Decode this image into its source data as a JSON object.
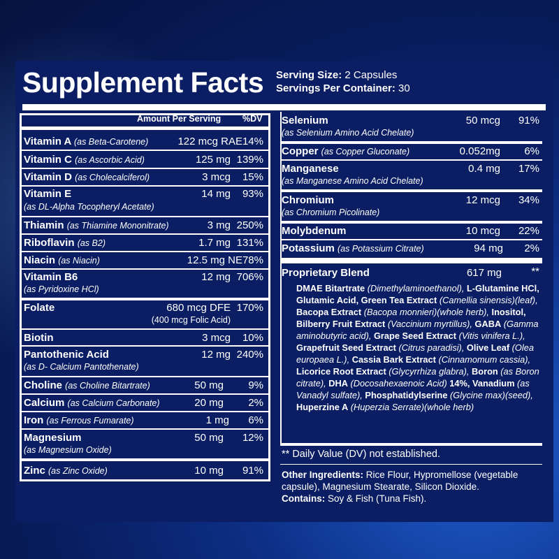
{
  "title": "Supplement Facts",
  "serving": {
    "size_label": "Serving Size:",
    "size_value": " 2 Capsules",
    "per_label": "Servings Per Container:",
    "per_value": " 30"
  },
  "columns": {
    "amount": "Amount Per Serving",
    "dv": "%DV"
  },
  "left_rows": [
    {
      "name": "Vitamin A",
      "sub": "(as Beta-Carotene)",
      "amount": "122 mcg RAE",
      "dv": "14%"
    },
    {
      "name": "Vitamin C",
      "sub": "(as Ascorbic Acid)",
      "amount": "125 mg",
      "dv": "139%"
    },
    {
      "name": "Vitamin D",
      "sub": "(as Cholecalciferol)",
      "amount": "3 mcg",
      "dv": "15%"
    },
    {
      "name": "Vitamin E",
      "sub": "(as DL-Alpha Tocopheryl Acetate)",
      "amount": "14 mg",
      "dv": "93%"
    },
    {
      "name": "Thiamin",
      "sub": "(as Thiamine Mononitrate)",
      "amount": "3 mg",
      "dv": "250%"
    },
    {
      "name": "Riboflavin",
      "sub": "(as B2)",
      "amount": "1.7 mg",
      "dv": "131%"
    },
    {
      "name": "Niacin",
      "sub": "(as Niacin)",
      "amount": "12.5 mg NE",
      "dv": "78%"
    },
    {
      "name": "Vitamin B6",
      "sub": "(as Pyridoxine HCl)",
      "amount": "12 mg",
      "dv": "706%"
    },
    {
      "name": "Folate",
      "sub": "",
      "amount": "680 mcg DFE",
      "amount2": "(400 mcg Folic Acid)",
      "dv": "170%"
    },
    {
      "name": "Biotin",
      "sub": "",
      "amount": "3 mcg",
      "dv": "10%"
    },
    {
      "name": "Pantothenic Acid",
      "sub": "(as D- Calcium Pantothenate)",
      "amount": "12 mg",
      "dv": "240%"
    },
    {
      "name": "Choline",
      "sub": "(as Choline Bitartrate)",
      "amount": "50 mg",
      "dv": "9%"
    },
    {
      "name": "Calcium",
      "sub": "(as Calcium Carbonate)",
      "amount": "20 mg",
      "dv": "2%"
    },
    {
      "name": "Iron",
      "sub": "(as Ferrous Fumarate)",
      "amount": "1 mg",
      "dv": "6%"
    },
    {
      "name": "Magnesium",
      "sub": "(as Magnesium Oxide)",
      "amount": "50 mg",
      "dv": "12%"
    },
    {
      "name": "Zinc",
      "sub": "(as Zinc Oxide)",
      "amount": "10 mg",
      "dv": "91%"
    }
  ],
  "right_rows": [
    {
      "name": "Selenium",
      "sub": "(as Selenium Amino Acid Chelate)",
      "amount": "50 mcg",
      "dv": "91%"
    },
    {
      "name": "Copper",
      "sub": "(as Copper Gluconate)",
      "amount": "0.052mg",
      "dv": "6%"
    },
    {
      "name": "Manganese",
      "sub": "(as Manganese Amino Acid Chelate)",
      "amount": "0.4 mg",
      "dv": "17%"
    },
    {
      "name": "Chromium",
      "sub": "(as Chromium Picolinate)",
      "amount": "12 mcg",
      "dv": "34%"
    },
    {
      "name": "Molybdenum",
      "sub": "",
      "amount": "10 mcg",
      "dv": "22%"
    },
    {
      "name": "Potassium",
      "sub": "(as Potassium Citrate)",
      "amount": "94 mg",
      "dv": "2%"
    }
  ],
  "blend": {
    "name": "Proprietary Blend",
    "amount": "617 mg",
    "dv": "**",
    "parts": [
      {
        "b": "DMAE Bitartrate",
        "i": " (Dimethylaminoethanol),"
      },
      {
        "b": "L-Glutamine HCl, Glutamic Acid, Green Tea Extract",
        "i": " (Camellia sinensis)(leaf),"
      },
      {
        "b": " Bacopa Extract",
        "i": " (Bacopa monnieri)(whole herb),"
      },
      {
        "b": " Inositol, Bilberry Fruit Extract",
        "i": " (Vaccinium myrtillus),"
      },
      {
        "b": " GABA",
        "i": " (Gamma aminobutyric acid),"
      },
      {
        "b": " Grape Seed Extract",
        "i": " (Vitis vinifera L.),"
      },
      {
        "b": " Grapefruit Seed Extract",
        "i": " (Citrus paradisi),"
      },
      {
        "b": " Olive Leaf",
        "i": " (Olea europaea L.),"
      },
      {
        "b": " Cassia Bark Extract",
        "i": " (Cinnamomum cassia),"
      },
      {
        "b": " Licorice Root Extract",
        "i": " (Glycyrrhiza glabra),"
      },
      {
        "b": " Boron",
        "i": " (as Boron citrate),"
      },
      {
        "b": " DHA",
        "i": " (Docosahexaenoic Acid)"
      },
      {
        "b": " 14%, Vanadium",
        "i": " (as Vanadyl sulfate),"
      },
      {
        "b": " Phosphatidylserine",
        "i": " (Glycine max)(seed),"
      },
      {
        "b": " Huperzine A",
        "i": " (Huperzia Serrate)(whole herb)"
      }
    ]
  },
  "note": "** Daily Value (DV) not established.",
  "other": {
    "label": "Other Ingredients:",
    "text": " Rice Flour, Hypromellose (vegetable capsule), Magnesium Stearate, Silicon Dioxide.",
    "contains_label": "Contains:",
    "contains_text": " Soy & Fish (Tuna Fish)."
  }
}
